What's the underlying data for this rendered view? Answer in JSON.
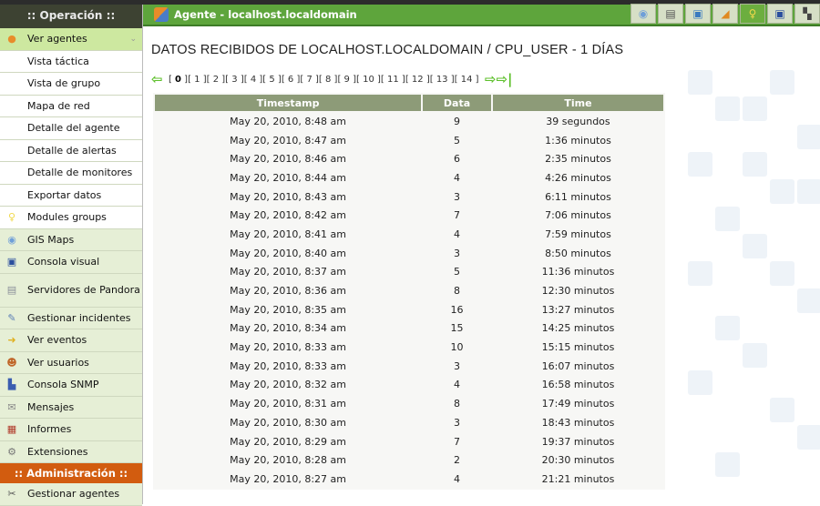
{
  "sidebar": {
    "header": ":: Operación ::",
    "items": [
      {
        "label": "Ver agentes",
        "icon": "agents-icon",
        "kind": "active",
        "chevron": true
      },
      {
        "label": "Vista táctica",
        "kind": "sub"
      },
      {
        "label": "Vista de grupo",
        "kind": "sub"
      },
      {
        "label": "Mapa de red",
        "kind": "sub"
      },
      {
        "label": "Detalle del agente",
        "kind": "sub"
      },
      {
        "label": "Detalle de alertas",
        "kind": "sub"
      },
      {
        "label": "Detalle de monitores",
        "kind": "sub"
      },
      {
        "label": "Exportar datos",
        "kind": "sub"
      },
      {
        "label": "Modules groups",
        "icon": "lightbulb-icon",
        "kind": "white"
      },
      {
        "label": "GIS Maps",
        "icon": "globe-icon"
      },
      {
        "label": "Consola visual",
        "icon": "monitor-icon"
      },
      {
        "label": "Servidores de Pandora",
        "icon": "server-icon",
        "kind": "tall"
      },
      {
        "label": "Gestionar incidentes",
        "icon": "incident-icon"
      },
      {
        "label": "Ver eventos",
        "icon": "events-icon"
      },
      {
        "label": "Ver usuarios",
        "icon": "users-icon"
      },
      {
        "label": "Consola SNMP",
        "icon": "snmp-icon"
      },
      {
        "label": "Mensajes",
        "icon": "envelope-icon"
      },
      {
        "label": "Informes",
        "icon": "reports-icon"
      },
      {
        "label": "Extensiones",
        "icon": "plug-icon"
      }
    ],
    "admin_header": ":: Administración ::",
    "admin_items": [
      {
        "label": "Gestionar agentes",
        "icon": "manage-agents-icon"
      }
    ]
  },
  "topbar": {
    "title": "Agente - localhost.localdomain",
    "tools": [
      "globe-icon",
      "servers-icon",
      "windows-icon",
      "broom-icon",
      "lightbulb-icon",
      "monitor-icon",
      "grid-icon"
    ],
    "active_tool": 4
  },
  "main": {
    "title": "DATOS RECIBIDOS DE LOCALHOST.LOCALDOMAIN / CPU_USER - 1 DÍAS",
    "pager": {
      "current": 0,
      "pages": [
        "0",
        "1",
        "2",
        "3",
        "4",
        "5",
        "6",
        "7",
        "8",
        "9",
        "10",
        "11",
        "12",
        "13",
        "14"
      ]
    },
    "table": {
      "headers": [
        "Timestamp",
        "Data",
        "Time"
      ],
      "rows": [
        [
          "May 20, 2010, 8:48 am",
          "9",
          "39 segundos"
        ],
        [
          "May 20, 2010, 8:47 am",
          "5",
          "1:36 minutos"
        ],
        [
          "May 20, 2010, 8:46 am",
          "6",
          "2:35 minutos"
        ],
        [
          "May 20, 2010, 8:44 am",
          "4",
          "4:26 minutos"
        ],
        [
          "May 20, 2010, 8:43 am",
          "3",
          "6:11 minutos"
        ],
        [
          "May 20, 2010, 8:42 am",
          "7",
          "7:06 minutos"
        ],
        [
          "May 20, 2010, 8:41 am",
          "4",
          "7:59 minutos"
        ],
        [
          "May 20, 2010, 8:40 am",
          "3",
          "8:50 minutos"
        ],
        [
          "May 20, 2010, 8:37 am",
          "5",
          "11:36 minutos"
        ],
        [
          "May 20, 2010, 8:36 am",
          "8",
          "12:30 minutos"
        ],
        [
          "May 20, 2010, 8:35 am",
          "16",
          "13:27 minutos"
        ],
        [
          "May 20, 2010, 8:34 am",
          "15",
          "14:25 minutos"
        ],
        [
          "May 20, 2010, 8:33 am",
          "10",
          "15:15 minutos"
        ],
        [
          "May 20, 2010, 8:33 am",
          "3",
          "16:07 minutos"
        ],
        [
          "May 20, 2010, 8:32 am",
          "4",
          "16:58 minutos"
        ],
        [
          "May 20, 2010, 8:31 am",
          "8",
          "17:49 minutos"
        ],
        [
          "May 20, 2010, 8:30 am",
          "3",
          "18:43 minutos"
        ],
        [
          "May 20, 2010, 8:29 am",
          "7",
          "19:37 minutos"
        ],
        [
          "May 20, 2010, 8:28 am",
          "2",
          "20:30 minutos"
        ],
        [
          "May 20, 2010, 8:27 am",
          "4",
          "21:21 minutos"
        ]
      ]
    }
  },
  "colors": {
    "sidebar_header": "#3d4232",
    "topbar": "#5ea53c",
    "admin_header": "#d25c0f",
    "table_header": "#8d9b78",
    "active_item": "#cde8a0"
  }
}
